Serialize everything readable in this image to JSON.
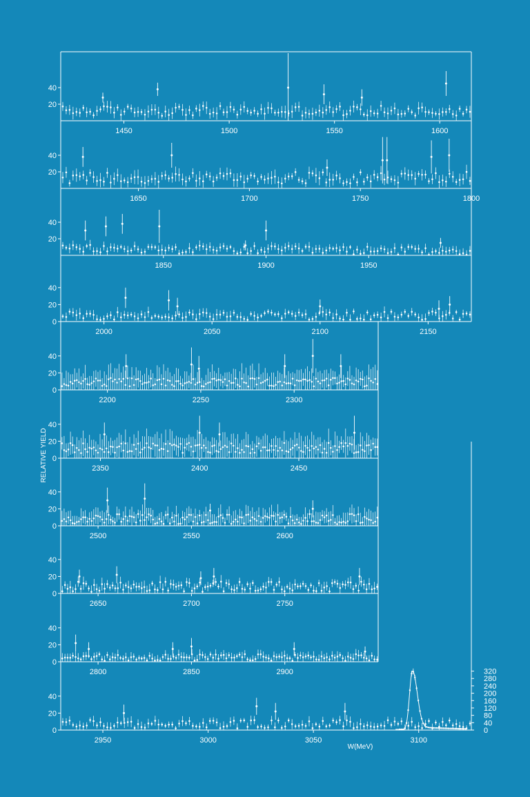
{
  "chart_data": {
    "type": "scatter",
    "ylabel": "RELATIVE YIELD",
    "xlabel": "W(MeV)",
    "colors": {
      "background": "#1488b9",
      "foreground": "#ffffff"
    },
    "panels": [
      {
        "xlim": [
          1420,
          1615
        ],
        "xticks": [
          1450,
          1500,
          1550,
          1600
        ],
        "ylim": [
          0,
          80
        ],
        "yticks": [
          20,
          40
        ],
        "tick_labels": [
          "20",
          "40"
        ],
        "level": 12,
        "scatter": 6,
        "err": 6,
        "spikes": [
          [
            1440,
            28,
            6
          ],
          [
            1466,
            38,
            8
          ],
          [
            1528,
            40,
            42
          ],
          [
            1545,
            32,
            12
          ],
          [
            1563,
            28,
            10
          ],
          [
            1603,
            45,
            15
          ]
        ]
      },
      {
        "xlim": [
          1615,
          1800
        ],
        "xticks": [
          1650,
          1700,
          1750,
          1800
        ],
        "ylim": [
          0,
          80
        ],
        "yticks": [
          20,
          40
        ],
        "tick_labels": [
          "20",
          "40"
        ],
        "level": 13,
        "scatter": 7,
        "err": 7,
        "spikes": [
          [
            1625,
            38,
            12
          ],
          [
            1665,
            40,
            15
          ],
          [
            1735,
            25,
            10
          ],
          [
            1760,
            34,
            28
          ],
          [
            1762,
            34,
            28
          ],
          [
            1782,
            38,
            20
          ],
          [
            1790,
            40,
            20
          ]
        ]
      },
      {
        "xlim": [
          1800,
          2000
        ],
        "xticks": [
          1850,
          1900,
          1950
        ],
        "ylim": [
          0,
          80
        ],
        "yticks": [
          20,
          40
        ],
        "tick_labels": [
          "20",
          "40"
        ],
        "level": 8,
        "scatter": 5,
        "err": 5,
        "decay": 0.4,
        "spikes": [
          [
            1812,
            30,
            12
          ],
          [
            1822,
            35,
            12
          ],
          [
            1830,
            38,
            12
          ],
          [
            1848,
            35,
            20
          ],
          [
            1890,
            12,
            6
          ],
          [
            1900,
            30,
            12
          ],
          [
            1985,
            15,
            6
          ]
        ]
      },
      {
        "xlim": [
          1980,
          2170
        ],
        "xticks": [
          2000,
          2050,
          2100,
          2150
        ],
        "ylim": [
          0,
          80
        ],
        "yticks": [
          0,
          20,
          40
        ],
        "tick_labels": [
          "0",
          "20",
          "40"
        ],
        "level": 7,
        "scatter": 5,
        "err": 5,
        "spikes": [
          [
            2010,
            28,
            12
          ],
          [
            2030,
            25,
            12
          ],
          [
            2034,
            18,
            10
          ],
          [
            2100,
            18,
            8
          ],
          [
            2155,
            15,
            10
          ],
          [
            2160,
            20,
            10
          ]
        ]
      },
      {
        "xlim": [
          2175,
          2345
        ],
        "xticks": [
          2200,
          2250,
          2300
        ],
        "ylim": [
          0,
          80
        ],
        "yticks": [
          0,
          20,
          40
        ],
        "tick_labels": [
          "0",
          "20",
          "40"
        ],
        "level": 9,
        "scatter": 5,
        "err": 14,
        "dense": true,
        "spikes": [
          [
            2210,
            28,
            14
          ],
          [
            2245,
            30,
            20
          ],
          [
            2249,
            25,
            15
          ],
          [
            2295,
            28,
            14
          ],
          [
            2310,
            40,
            20
          ],
          [
            2325,
            28,
            14
          ]
        ]
      },
      {
        "xlim": [
          2330,
          2490
        ],
        "xticks": [
          2350,
          2400,
          2450
        ],
        "ylim": [
          0,
          80
        ],
        "yticks": [
          0,
          20,
          40
        ],
        "tick_labels": [
          "0",
          "20",
          "40"
        ],
        "level": 12,
        "scatter": 6,
        "err": 14,
        "dense": true,
        "spikes": [
          [
            2352,
            28,
            14
          ],
          [
            2400,
            30,
            20
          ],
          [
            2410,
            28,
            14
          ],
          [
            2478,
            30,
            20
          ]
        ]
      },
      {
        "xlim": [
          2480,
          2650
        ],
        "xticks": [
          2500,
          2550,
          2600
        ],
        "ylim": [
          0,
          80
        ],
        "yticks": [
          0,
          20,
          40
        ],
        "tick_labels": [
          "0",
          "20",
          "40"
        ],
        "level": 8,
        "scatter": 6,
        "err": 10,
        "dense": true,
        "spikes": [
          [
            2505,
            30,
            15
          ],
          [
            2525,
            32,
            18
          ],
          [
            2560,
            18,
            8
          ],
          [
            2615,
            20,
            10
          ]
        ]
      },
      {
        "xlim": [
          2630,
          2800
        ],
        "xticks": [
          2650,
          2700,
          2750
        ],
        "ylim": [
          0,
          80
        ],
        "yticks": [
          0,
          20,
          40
        ],
        "tick_labels": [
          "0",
          "20",
          "40"
        ],
        "level": 8,
        "scatter": 6,
        "err": 6,
        "spikes": [
          [
            2640,
            20,
            8
          ],
          [
            2660,
            22,
            10
          ],
          [
            2705,
            18,
            8
          ],
          [
            2712,
            20,
            10
          ],
          [
            2790,
            20,
            10
          ]
        ]
      },
      {
        "xlim": [
          2780,
          2950
        ],
        "xticks": [
          2800,
          2850,
          2900
        ],
        "ylim": [
          0,
          80
        ],
        "yticks": [
          0,
          20,
          40
        ],
        "tick_labels": [
          "0",
          "20",
          "40"
        ],
        "level": 5,
        "scatter": 4,
        "err": 5,
        "spikes": [
          [
            2788,
            22,
            10
          ],
          [
            2795,
            15,
            8
          ],
          [
            2840,
            15,
            8
          ],
          [
            2850,
            18,
            10
          ],
          [
            2905,
            15,
            8
          ],
          [
            2943,
            12,
            6
          ]
        ]
      },
      {
        "xlim": [
          2930,
          3125
        ],
        "xticks": [
          2950,
          3000,
          3050,
          3100
        ],
        "ylim": [
          0,
          340
        ],
        "yticks": [
          0,
          40,
          80,
          120,
          160,
          200,
          240,
          280,
          320
        ],
        "tick_labels": [
          "0",
          "40",
          "80",
          "120",
          "160",
          "200",
          "240",
          "280",
          "320"
        ],
        "left_ticks": [
          0,
          20,
          40
        ],
        "left_tick_labels": [
          "0",
          "20",
          "40"
        ],
        "level": 7,
        "scatter": 5,
        "err": 5,
        "spikes": [
          [
            2960,
            20,
            10
          ],
          [
            3023,
            28,
            10
          ],
          [
            3032,
            22,
            10
          ],
          [
            3065,
            22,
            10
          ]
        ],
        "peak": {
          "x": 3097,
          "height": 320,
          "width": 3.2,
          "tail": 18
        }
      }
    ]
  }
}
